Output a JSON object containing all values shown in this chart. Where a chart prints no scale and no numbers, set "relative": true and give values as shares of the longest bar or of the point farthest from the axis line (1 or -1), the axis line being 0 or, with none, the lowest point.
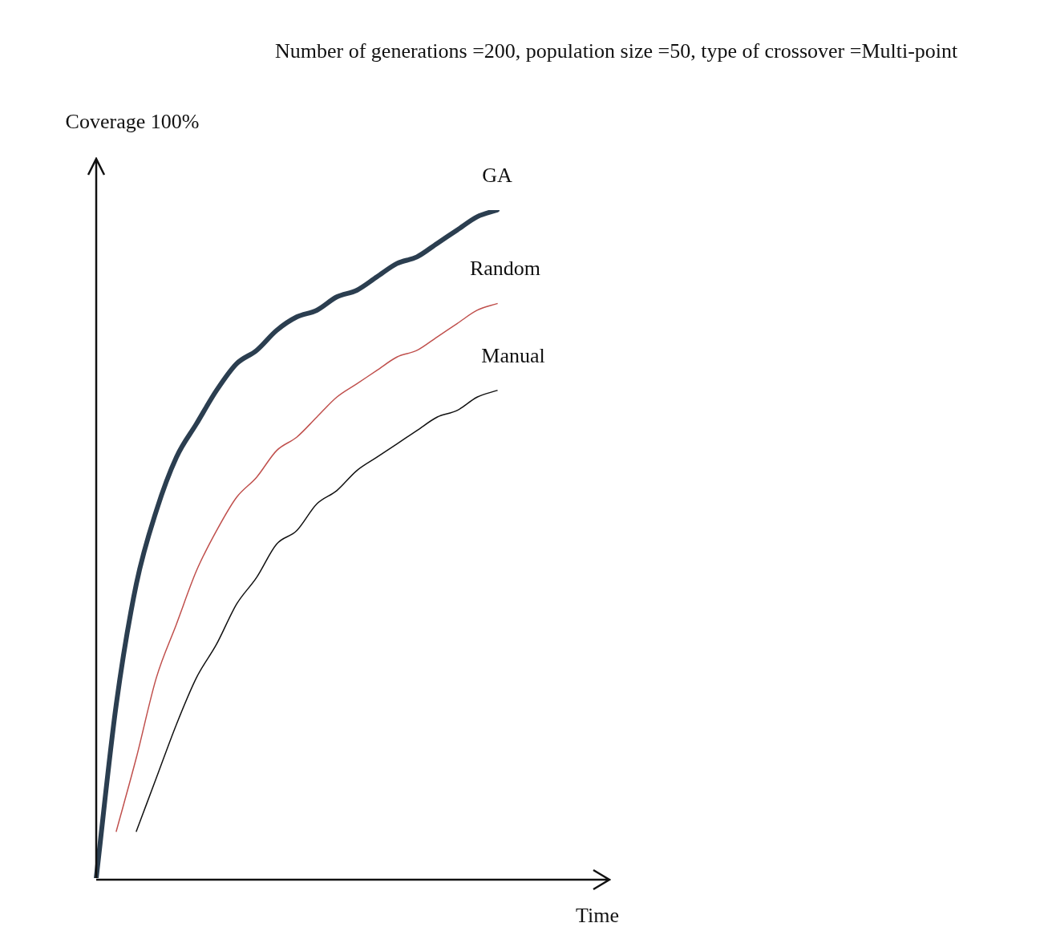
{
  "chart_data": {
    "type": "line",
    "title": "Number of generations =200, population size =50, type of crossover =Multi-point",
    "xlabel": "Time",
    "ylabel": "Coverage 100%",
    "relative": true,
    "legend": false,
    "marker": "none",
    "line_style": "solid",
    "categories": [
      null,
      null,
      null,
      null,
      null,
      null,
      null,
      null,
      null,
      null,
      null,
      null,
      null,
      null,
      null,
      null,
      null,
      null,
      null,
      null,
      null,
      null,
      null,
      null,
      null,
      null
    ],
    "series": [
      {
        "name": "GA",
        "color": "#2b3e50",
        "values": [
          0,
          0.26,
          0.44,
          0.55,
          0.63,
          0.68,
          0.73,
          0.77,
          0.79,
          0.82,
          0.84,
          0.85,
          0.87,
          0.88,
          0.9,
          0.92,
          0.93,
          0.95,
          0.97,
          0.99,
          1,
          null,
          null,
          null,
          null,
          null
        ]
      },
      {
        "name": "Random",
        "color": "#c0504d",
        "values": [
          null,
          0.07,
          0.18,
          0.3,
          0.38,
          0.46,
          0.52,
          0.57,
          0.6,
          0.64,
          0.66,
          0.69,
          0.72,
          0.74,
          0.76,
          0.78,
          0.79,
          0.81,
          0.83,
          0.85,
          0.86,
          null,
          null,
          null,
          null,
          null
        ]
      },
      {
        "name": "Manual",
        "color": "#111111",
        "values": [
          null,
          null,
          0.07,
          0.15,
          0.23,
          0.3,
          0.35,
          0.41,
          0.45,
          0.5,
          0.52,
          0.56,
          0.58,
          0.61,
          0.63,
          0.65,
          0.67,
          0.69,
          0.7,
          0.72,
          0.73,
          null,
          null,
          null,
          null,
          null
        ]
      }
    ]
  }
}
